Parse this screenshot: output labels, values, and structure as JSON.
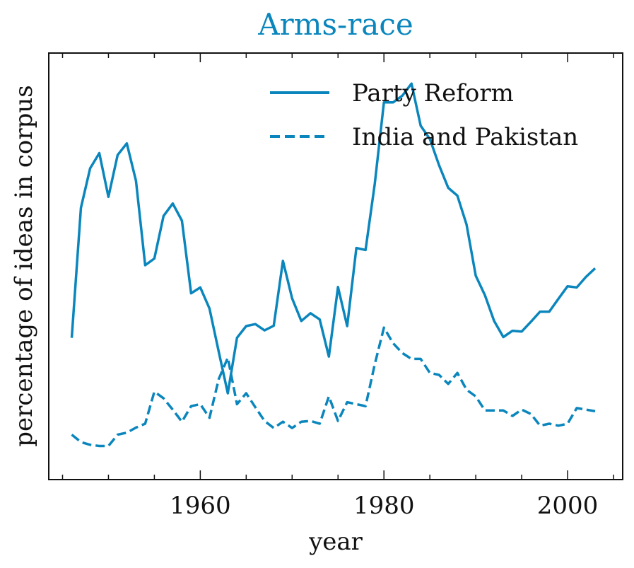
{
  "chart_data": {
    "type": "line",
    "title": "Arms-race",
    "xlabel": "year",
    "ylabel": "percentage of ideas in corpus",
    "xlim": [
      1943.5,
      2006
    ],
    "ylim": [
      0,
      100
    ],
    "x_ticks": [
      1960,
      1980,
      2000
    ],
    "x_tick_labels": [
      "1960",
      "1980",
      "2000"
    ],
    "y_ticks_labeled": false,
    "grid": false,
    "legend_position": "top-right",
    "color": "#0a86bd",
    "series": [
      {
        "name": "Party Reform",
        "style": "solid",
        "x": [
          1946,
          1947,
          1948,
          1949,
          1950,
          1951,
          1952,
          1953,
          1954,
          1955,
          1956,
          1957,
          1958,
          1959,
          1960,
          1961,
          1962,
          1963,
          1964,
          1965,
          1966,
          1967,
          1968,
          1969,
          1970,
          1971,
          1972,
          1973,
          1974,
          1975,
          1976,
          1977,
          1978,
          1979,
          1980,
          1981,
          1982,
          1983,
          1984,
          1985,
          1986,
          1987,
          1988,
          1989,
          1990,
          1991,
          1992,
          1993,
          1994,
          1995,
          1996,
          1997,
          1998,
          1999,
          2000,
          2001,
          2002,
          2003
        ],
        "values": [
          31.6,
          64.9,
          75.0,
          78.9,
          67.7,
          78.4,
          81.4,
          71.8,
          50.2,
          51.9,
          62.8,
          66.0,
          61.6,
          43.0,
          44.5,
          39.1,
          28.1,
          17.4,
          31.6,
          34.6,
          35.1,
          33.5,
          34.7,
          51.3,
          41.7,
          35.9,
          37.9,
          36.3,
          26.8,
          44.6,
          34.6,
          54.6,
          54.1,
          71.0,
          91.9,
          91.9,
          93.6,
          96.7,
          85.9,
          82.5,
          75.8,
          70.0,
          68.0,
          60.6,
          47.5,
          42.5,
          35.9,
          31.8,
          33.4,
          33.2,
          35.7,
          38.3,
          38.3,
          41.6,
          44.8,
          44.5,
          47.2,
          49.4
        ]
      },
      {
        "name": "India and Pakistan",
        "style": "dashed",
        "x": [
          1946,
          1947,
          1948,
          1949,
          1950,
          1951,
          1952,
          1953,
          1954,
          1955,
          1956,
          1957,
          1958,
          1959,
          1960,
          1961,
          1962,
          1963,
          1964,
          1965,
          1966,
          1967,
          1968,
          1969,
          1970,
          1971,
          1972,
          1973,
          1974,
          1975,
          1976,
          1977,
          1978,
          1979,
          1980,
          1981,
          1982,
          1983,
          1984,
          1985,
          1986,
          1987,
          1988,
          1989,
          1990,
          1991,
          1992,
          1993,
          1994,
          1995,
          1996,
          1997,
          1998,
          1999,
          2000,
          2001,
          2002,
          2003
        ],
        "values": [
          6.8,
          4.9,
          4.2,
          3.9,
          3.9,
          6.8,
          7.3,
          8.6,
          9.6,
          17.8,
          16.1,
          13.2,
          10.1,
          14.1,
          14.6,
          11.1,
          21.0,
          26.5,
          14.6,
          17.4,
          13.8,
          10.3,
          8.5,
          10.1,
          8.5,
          10.1,
          10.3,
          9.6,
          16.6,
          10.3,
          15.1,
          14.6,
          14.1,
          24.8,
          34.2,
          30.2,
          27.7,
          26.2,
          26.2,
          22.6,
          22.1,
          19.8,
          22.6,
          18.3,
          16.6,
          13.0,
          13.0,
          13.0,
          11.6,
          13.2,
          12.1,
          9.1,
          9.6,
          9.1,
          9.6,
          13.6,
          13.2,
          12.8
        ]
      }
    ]
  }
}
